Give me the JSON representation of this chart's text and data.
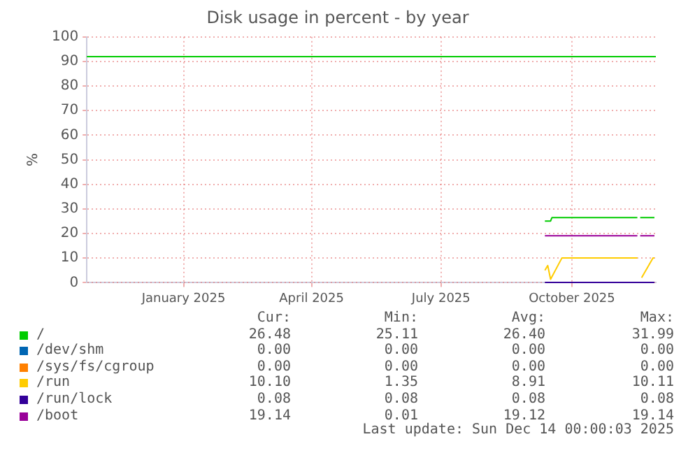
{
  "chart_data": [
    {
      "type": "line",
      "title": "Disk usage in percent - by year",
      "ylabel": "%",
      "xlim": [
        "2024-11-09",
        "2025-12-14"
      ],
      "xticks": [
        {
          "value": "2025-01-16",
          "label": "January 2025"
        },
        {
          "value": "2025-04-16",
          "label": "April 2025"
        },
        {
          "value": "2025-07-16",
          "label": "July 2025"
        },
        {
          "value": "2025-10-16",
          "label": "October 2025"
        }
      ],
      "ylim": [
        0,
        100
      ],
      "yticks": [
        0,
        10,
        20,
        30,
        40,
        50,
        60,
        70,
        80,
        90,
        100
      ],
      "grid": true,
      "legend": "bottom",
      "marker": "none",
      "line_style": "solid",
      "ref_lines": [
        {
          "axis": "y",
          "value": 92,
          "color": "#00cc00"
        }
      ],
      "annotations": [
        "Last update: Sun Dec 14 00:00:03 2025"
      ],
      "series": [
        {
          "name": "/",
          "color": "#00cc00",
          "x": [
            "2025-09-27",
            "2025-10-01",
            "2025-10-02",
            "2025-12-01",
            "2025-12-02",
            "2025-12-03",
            "2025-12-13"
          ],
          "values": [
            25.1,
            25.1,
            26.5,
            26.5,
            null,
            26.5,
            26.5
          ]
        },
        {
          "name": "/dev/shm",
          "color": "#0066b3"
        },
        {
          "name": "/sys/fs/cgroup",
          "color": "#ff8000"
        },
        {
          "name": "/run",
          "color": "#ffcc00",
          "x": [
            "2025-09-27",
            "2025-09-29",
            "2025-10-01",
            "2025-10-09",
            "2025-12-01",
            "2025-12-02",
            "2025-12-04",
            "2025-12-12",
            "2025-12-13"
          ],
          "values": [
            5,
            7,
            1.4,
            10.1,
            10.1,
            null,
            2,
            10.1,
            10.1
          ]
        },
        {
          "name": "/run/lock",
          "color": "#330099",
          "x": [
            "2025-09-27",
            "2025-12-13"
          ],
          "values": [
            0.1,
            0.1
          ]
        },
        {
          "name": "/boot",
          "color": "#990099",
          "x": [
            "2025-09-27",
            "2025-12-01",
            "2025-12-02",
            "2025-12-03",
            "2025-12-13"
          ],
          "values": [
            19.1,
            19.1,
            null,
            19.1,
            19.1
          ]
        }
      ]
    },
    {
      "type": "other",
      "annotations": [
        "Cur:",
        "Min:",
        "Avg:",
        "Max:",
        "26.48",
        "25.11",
        "26.40",
        "31.99",
        "0.00",
        "0.00",
        "0.00",
        "0.00",
        "0.00",
        "0.00",
        "0.00",
        "0.00",
        "10.10",
        "1.35",
        "8.91",
        "10.11",
        "0.08",
        "0.08",
        "0.08",
        "0.08",
        "19.14",
        "0.01",
        "19.12",
        "19.14"
      ]
    }
  ]
}
